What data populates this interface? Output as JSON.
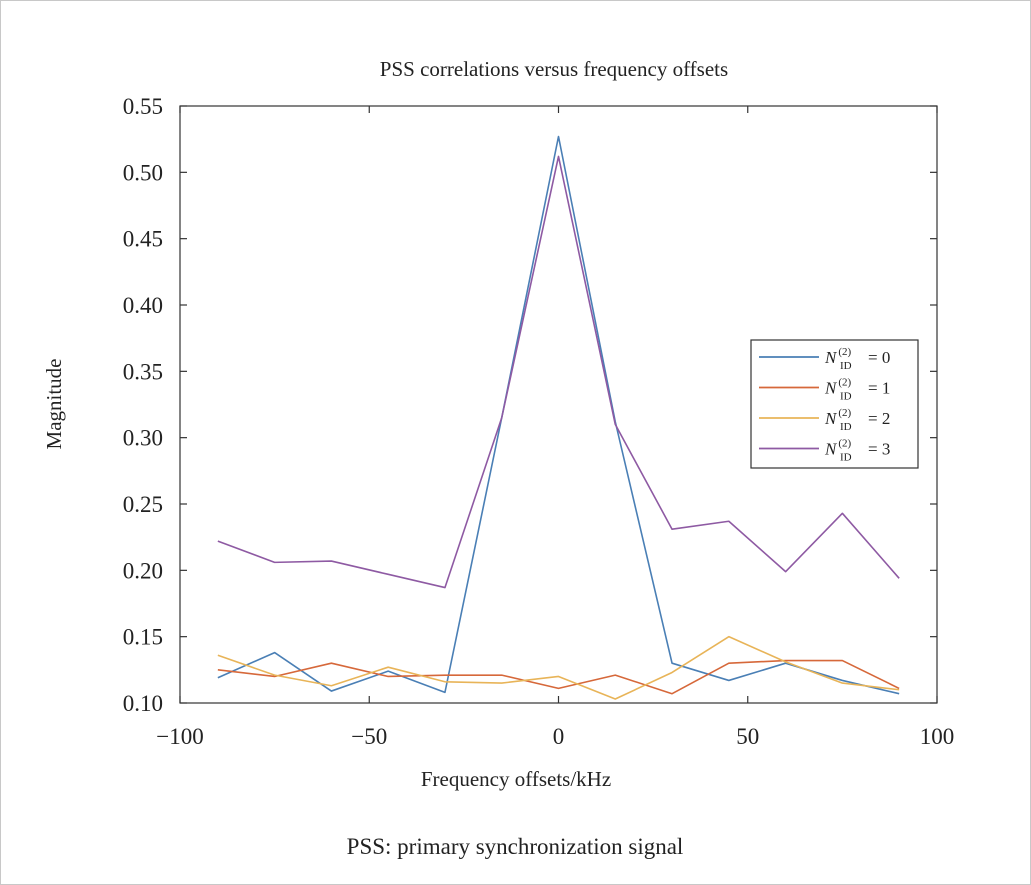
{
  "chart_data": {
    "type": "line",
    "title": "PSS correlations versus frequency offsets",
    "xlabel": "Frequency offsets/kHz",
    "ylabel": "Magnitude",
    "xlim": [
      -100,
      100
    ],
    "ylim": [
      0.1,
      0.55
    ],
    "x_ticks": [
      -100,
      -50,
      0,
      50,
      100
    ],
    "x_tick_labels": [
      "−100",
      "−50",
      "0",
      "50",
      "100"
    ],
    "y_ticks": [
      0.1,
      0.15,
      0.2,
      0.25,
      0.3,
      0.35,
      0.4,
      0.45,
      0.5,
      0.55
    ],
    "y_tick_labels": [
      "0.10",
      "0.15",
      "0.20",
      "0.25",
      "0.30",
      "0.35",
      "0.40",
      "0.45",
      "0.50",
      "0.55"
    ],
    "grid": false,
    "legend_position": "right",
    "x": [
      -90,
      -75,
      -60,
      -45,
      -30,
      -15,
      0,
      15,
      30,
      45,
      60,
      75,
      90
    ],
    "series": [
      {
        "legend_base": "N",
        "legend_sup": "(2)",
        "legend_sub": "ID",
        "legend_eq": "= 0",
        "color": "#4a7fb5",
        "values": [
          0.119,
          0.138,
          0.109,
          0.124,
          0.108,
          0.315,
          0.527,
          0.312,
          0.13,
          0.117,
          0.13,
          0.117,
          0.107
        ]
      },
      {
        "legend_base": "N",
        "legend_sup": "(2)",
        "legend_sub": "ID",
        "legend_eq": "= 1",
        "color": "#d6683a",
        "values": [
          0.125,
          0.12,
          0.13,
          0.12,
          0.121,
          0.121,
          0.111,
          0.121,
          0.107,
          0.13,
          0.132,
          0.132,
          0.111
        ]
      },
      {
        "legend_base": "N",
        "legend_sup": "(2)",
        "legend_sub": "ID",
        "legend_eq": "= 2",
        "color": "#e8b458",
        "values": [
          0.136,
          0.121,
          0.113,
          0.127,
          0.116,
          0.115,
          0.12,
          0.103,
          0.123,
          0.15,
          0.131,
          0.115,
          0.11
        ]
      },
      {
        "legend_base": "N",
        "legend_sup": "(2)",
        "legend_sub": "ID",
        "legend_eq": "= 3",
        "color": "#8e5aa3",
        "values": [
          0.222,
          0.206,
          0.207,
          0.197,
          0.187,
          0.315,
          0.512,
          0.31,
          0.231,
          0.237,
          0.199,
          0.243,
          0.194
        ]
      }
    ]
  },
  "caption": "PSS: primary synchronization signal"
}
